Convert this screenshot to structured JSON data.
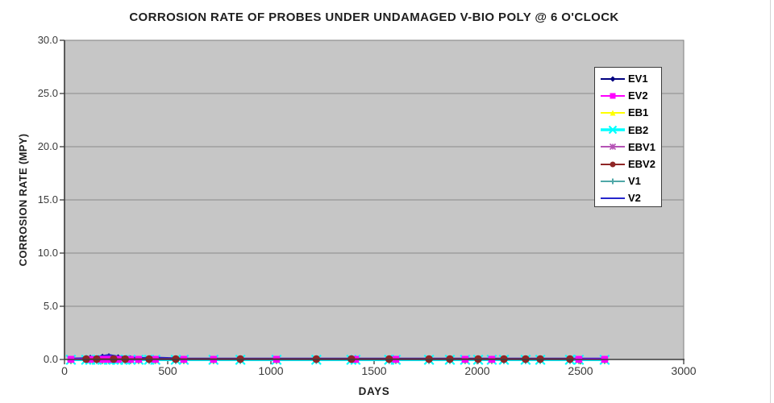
{
  "chart_data": {
    "type": "line",
    "title": "CORROSION RATE OF PROBES UNDER UNDAMAGED V-BIO POLY @ 6 O'CLOCK",
    "xlabel": "DAYS",
    "ylabel": "CORROSION RATE (MPY)",
    "xlim": [
      0,
      3000
    ],
    "ylim": [
      0,
      30
    ],
    "xticks": [
      0,
      500,
      1000,
      1500,
      2000,
      2500,
      3000
    ],
    "xtick_labels": [
      "0",
      "500",
      "1000",
      "1500",
      "2000",
      "2500",
      "3000"
    ],
    "yticks": [
      0,
      5,
      10,
      15,
      20,
      25,
      30
    ],
    "ytick_labels": [
      "0.0",
      "5.0",
      "10.0",
      "15.0",
      "20.0",
      "25.0",
      "30.0"
    ],
    "grid": "horizontal",
    "plot_bg_color": "#c6c6c6",
    "gridline_color": "#8a8a8a",
    "plot_border_color": "#7d7d7d",
    "axis_color": "#3a3a3a",
    "legend_position": "top-right-inside",
    "series": [
      {
        "name": "EV1",
        "color": "#000080",
        "marker": "diamond",
        "x": [
          31,
          125,
          184,
          215,
          260,
          320,
          359,
          440,
          578,
          722,
          1027,
          1410,
          1605,
          1941,
          2070,
          2492,
          2617
        ],
        "y": [
          0,
          0.1,
          0.2,
          0.25,
          0.15,
          0.05,
          0,
          0,
          0,
          0,
          0,
          0,
          0,
          0,
          0,
          0,
          0
        ]
      },
      {
        "name": "EV2",
        "color": "#ff00ff",
        "marker": "square",
        "x": [
          31,
          125,
          184,
          215,
          260,
          320,
          359,
          440,
          578,
          722,
          1027,
          1410,
          1605,
          1941,
          2070,
          2492,
          2617
        ],
        "y": [
          0,
          0,
          0,
          0,
          0,
          0,
          0,
          0,
          0,
          0,
          0,
          0,
          0,
          0,
          0,
          0,
          0
        ]
      },
      {
        "name": "EB1",
        "color": "#ffff00",
        "marker": "triangle",
        "x": [
          31,
          125,
          184,
          215,
          260,
          320,
          359,
          440,
          578,
          722,
          1027,
          1410,
          1605,
          1941,
          2070,
          2492,
          2617
        ],
        "y": [
          0,
          0,
          0,
          0,
          0,
          0,
          0,
          0,
          0,
          0,
          0,
          0,
          0,
          0,
          0,
          0,
          0
        ]
      },
      {
        "name": "EB2",
        "color": "#00ffff",
        "marker": "x",
        "x": [
          31,
          105,
          125,
          156,
          184,
          215,
          238,
          260,
          294,
          320,
          359,
          410,
          440,
          539,
          578,
          722,
          852,
          1027,
          1220,
          1390,
          1410,
          1573,
          1605,
          1766,
          1867,
          1941,
          2004,
          2070,
          2129,
          2234,
          2305,
          2449,
          2492,
          2617
        ],
        "y": [
          0,
          0,
          0,
          0,
          0,
          0,
          0,
          0,
          0,
          0,
          0,
          0,
          0,
          0,
          0,
          0,
          0,
          0,
          0,
          0,
          0,
          0,
          0,
          0,
          0,
          0,
          0,
          0,
          0,
          0,
          0,
          0,
          0,
          0
        ]
      },
      {
        "name": "EBV1",
        "color": "#b553b5",
        "marker": "asterisk",
        "x": [
          105,
          156,
          238,
          294,
          410,
          539,
          852,
          1220,
          1390,
          1573,
          1766,
          1867,
          2004,
          2129,
          2234,
          2305,
          2449
        ],
        "y": [
          0,
          0,
          0,
          0,
          0,
          0,
          0,
          0,
          0,
          0,
          0,
          0,
          0,
          0,
          0,
          0,
          0
        ]
      },
      {
        "name": "EBV2",
        "color": "#8f2626",
        "marker": "circle",
        "x": [
          105,
          156,
          238,
          294,
          410,
          539,
          852,
          1220,
          1390,
          1573,
          1766,
          1867,
          2004,
          2129,
          2234,
          2305,
          2449
        ],
        "y": [
          0,
          0,
          0,
          0,
          0,
          0,
          0,
          0,
          0,
          0,
          0,
          0,
          0,
          0,
          0,
          0,
          0
        ]
      },
      {
        "name": "V1",
        "color": "#4fa8a8",
        "marker": "plus",
        "x": [
          31,
          105,
          125,
          156,
          184,
          215,
          238,
          260,
          294,
          320,
          359,
          410,
          440,
          539,
          578,
          722,
          852,
          1027,
          1220,
          1390,
          1410,
          1573,
          1605,
          1766,
          1867,
          1941,
          2004,
          2070,
          2129,
          2234,
          2305,
          2449,
          2492,
          2617
        ],
        "y": [
          0,
          0,
          0,
          0,
          0,
          0,
          0,
          0,
          0,
          0,
          0,
          0,
          0,
          0,
          0,
          0,
          0,
          0,
          0,
          0,
          0,
          0,
          0,
          0,
          0,
          0,
          0,
          0,
          0,
          0,
          0,
          0,
          0,
          0
        ]
      },
      {
        "name": "V2",
        "color": "#2626cc",
        "marker": "none",
        "x": [
          31,
          125,
          184,
          215,
          260,
          320,
          359,
          440,
          578,
          722,
          1027,
          1410,
          1605,
          1941,
          2070,
          2492,
          2617
        ],
        "y": [
          0,
          0.05,
          0.25,
          0.35,
          0.2,
          0.1,
          0.05,
          0.1,
          0,
          0,
          0,
          0,
          0,
          0,
          0,
          0,
          0
        ]
      }
    ]
  }
}
